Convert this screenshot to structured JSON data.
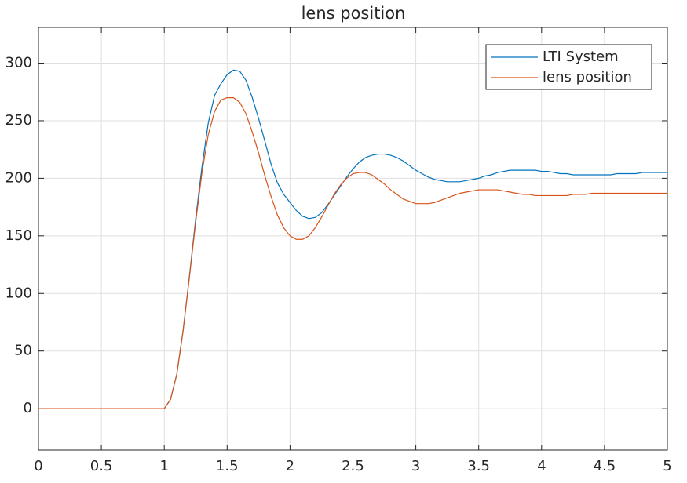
{
  "chart_data": {
    "type": "line",
    "title": "lens position",
    "x": [
      0,
      1.0,
      1.05,
      1.1,
      1.15,
      1.2,
      1.25,
      1.3,
      1.35,
      1.4,
      1.45,
      1.5,
      1.55,
      1.6,
      1.65,
      1.7,
      1.75,
      1.8,
      1.85,
      1.9,
      1.95,
      2.0,
      2.05,
      2.1,
      2.15,
      2.2,
      2.25,
      2.3,
      2.35,
      2.4,
      2.45,
      2.5,
      2.55,
      2.6,
      2.65,
      2.7,
      2.75,
      2.8,
      2.85,
      2.9,
      2.95,
      3.0,
      3.05,
      3.1,
      3.15,
      3.2,
      3.25,
      3.3,
      3.35,
      3.4,
      3.45,
      3.5,
      3.55,
      3.6,
      3.65,
      3.7,
      3.75,
      3.8,
      3.85,
      3.9,
      3.95,
      4.0,
      4.05,
      4.1,
      4.15,
      4.2,
      4.25,
      4.3,
      4.35,
      4.4,
      4.45,
      4.5,
      4.55,
      4.6,
      4.65,
      4.7,
      4.75,
      4.8,
      4.85,
      4.9,
      4.95,
      5.0
    ],
    "series": [
      {
        "name": "LTI System",
        "color": "#0072BD",
        "values": [
          0,
          0,
          8,
          30,
          68,
          115,
          165,
          210,
          248,
          272,
          282,
          290,
          294,
          293,
          285,
          270,
          252,
          232,
          212,
          196,
          186,
          179,
          172,
          167,
          165,
          166,
          170,
          177,
          185,
          193,
          201,
          208,
          214,
          218,
          220,
          221,
          221,
          220,
          218,
          215,
          211,
          207,
          204,
          201,
          199,
          198,
          197,
          197,
          197,
          198,
          199,
          200,
          202,
          203,
          205,
          206,
          207,
          207,
          207,
          207,
          207,
          206,
          206,
          205,
          204,
          204,
          203,
          203,
          203,
          203,
          203,
          203,
          203,
          204,
          204,
          204,
          204,
          205,
          205,
          205,
          205,
          205
        ]
      },
      {
        "name": "lens position",
        "color": "#D95319",
        "values": [
          0,
          0,
          8,
          30,
          68,
          114,
          162,
          205,
          238,
          258,
          268,
          270,
          270,
          266,
          256,
          240,
          222,
          202,
          184,
          168,
          157,
          150,
          147,
          147,
          150,
          157,
          166,
          176,
          186,
          194,
          200,
          204,
          205,
          205,
          203,
          199,
          195,
          190,
          186,
          182,
          180,
          178,
          178,
          178,
          179,
          181,
          183,
          185,
          187,
          188,
          189,
          190,
          190,
          190,
          190,
          189,
          188,
          187,
          186,
          186,
          185,
          185,
          185,
          185,
          185,
          185,
          186,
          186,
          186,
          187,
          187,
          187,
          187,
          187,
          187,
          187,
          187,
          187,
          187,
          187,
          187,
          187
        ]
      }
    ],
    "xlim": [
      0,
      5
    ],
    "ylim": [
      -36,
      331
    ],
    "xticks": [
      0,
      0.5,
      1,
      1.5,
      2,
      2.5,
      3,
      3.5,
      4,
      4.5,
      5
    ],
    "yticks": [
      0,
      50,
      100,
      150,
      200,
      250,
      300
    ],
    "grid": true,
    "legend": "northeast"
  }
}
